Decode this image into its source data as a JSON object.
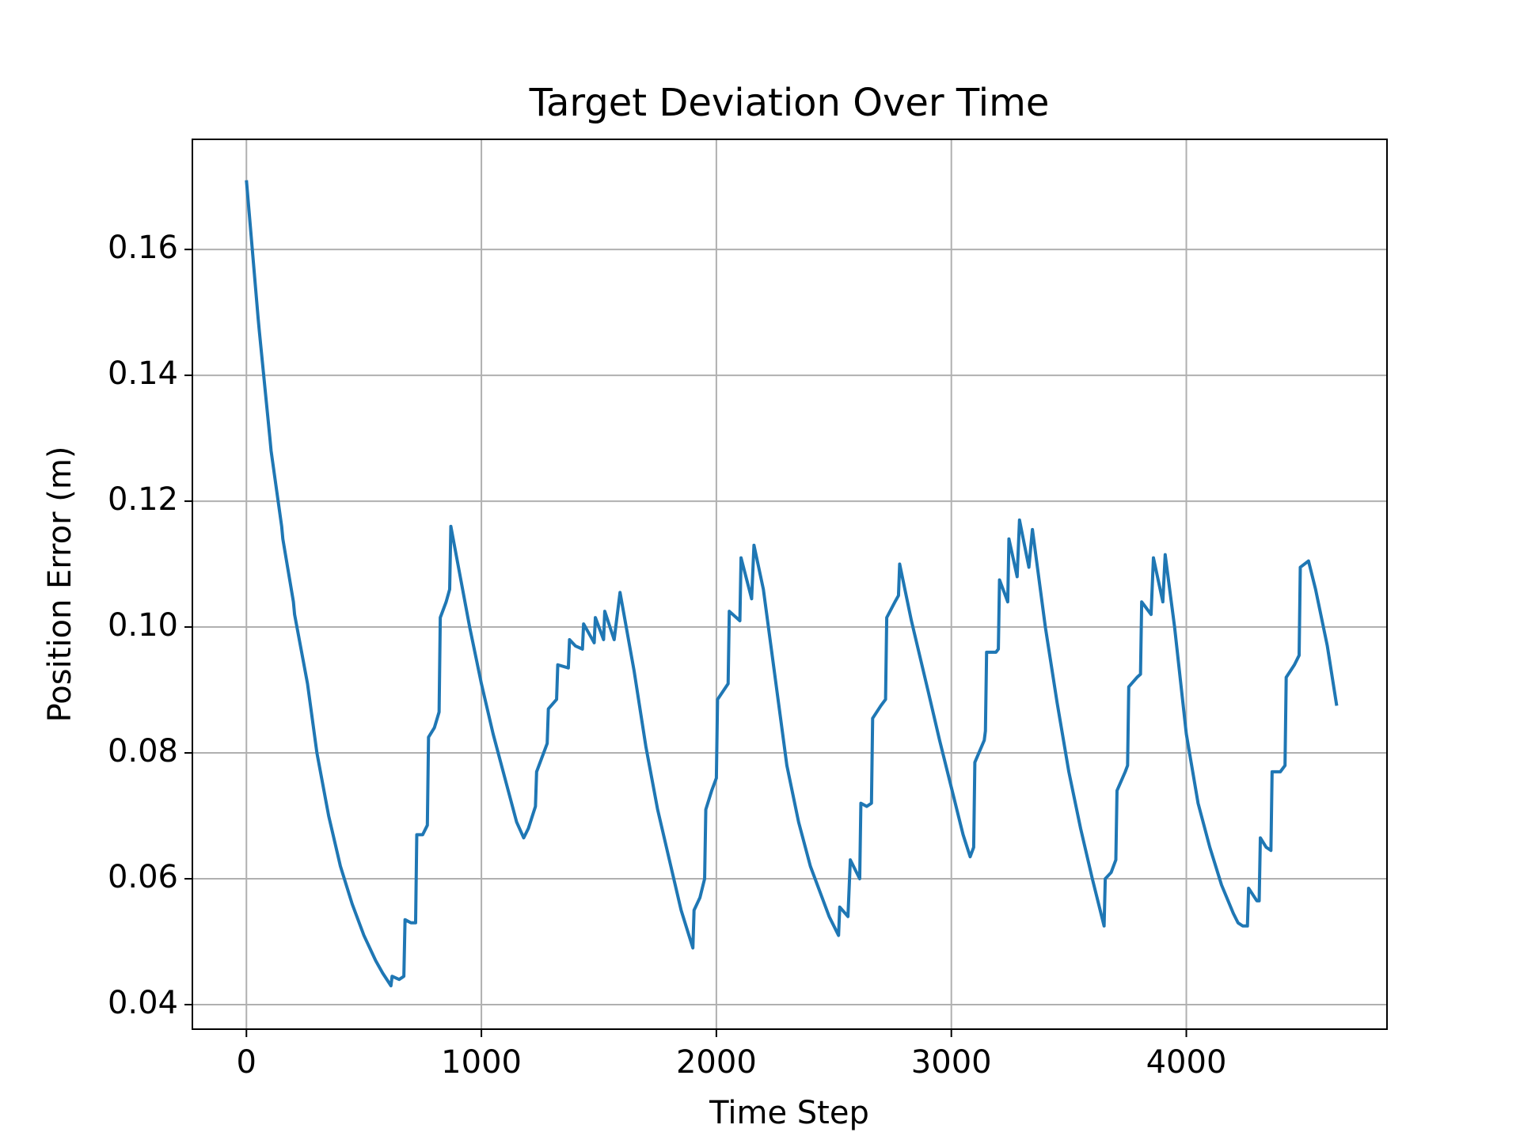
{
  "chart_data": {
    "type": "line",
    "title": "Target Deviation Over Time",
    "xlabel": "Time Step",
    "ylabel": "Position Error (m)",
    "color": "#1f77b4",
    "grid": true,
    "xlim": [
      -230,
      4854
    ],
    "ylim": [
      0.0361,
      0.1775
    ],
    "xticks": [
      0,
      1000,
      2000,
      3000,
      4000
    ],
    "yticks": [
      0.04,
      0.06,
      0.08,
      {
        "value": 0.1,
        "label": "0.10"
      },
      0.12,
      0.14,
      0.16
    ],
    "x": [
      0,
      50,
      55,
      100,
      105,
      150,
      155,
      200,
      205,
      255,
      260,
      300,
      350,
      400,
      450,
      500,
      550,
      580,
      615,
      620,
      650,
      670,
      675,
      700,
      720,
      725,
      750,
      770,
      775,
      800,
      820,
      825,
      850,
      865,
      870,
      900,
      950,
      1000,
      1050,
      1100,
      1150,
      1180,
      1200,
      1230,
      1235,
      1280,
      1285,
      1320,
      1325,
      1370,
      1375,
      1400,
      1430,
      1435,
      1480,
      1485,
      1520,
      1525,
      1565,
      1590,
      1650,
      1700,
      1750,
      1800,
      1850,
      1900,
      1905,
      1930,
      1950,
      1955,
      1980,
      2000,
      2005,
      2050,
      2055,
      2100,
      2105,
      2150,
      2160,
      2200,
      2250,
      2300,
      2350,
      2400,
      2450,
      2480,
      2520,
      2525,
      2560,
      2570,
      2610,
      2615,
      2640,
      2660,
      2665,
      2700,
      2720,
      2725,
      2760,
      2775,
      2780,
      2830,
      2900,
      2950,
      3000,
      3050,
      3080,
      3095,
      3100,
      3140,
      3145,
      3150,
      3190,
      3200,
      3205,
      3240,
      3245,
      3280,
      3290,
      3330,
      3345,
      3400,
      3450,
      3500,
      3550,
      3600,
      3650,
      3655,
      3680,
      3700,
      3705,
      3740,
      3750,
      3755,
      3790,
      3805,
      3810,
      3850,
      3860,
      3900,
      3910,
      3950,
      4000,
      4050,
      4100,
      4150,
      4200,
      4220,
      4240,
      4260,
      4265,
      4300,
      4310,
      4315,
      4340,
      4360,
      4365,
      4400,
      4420,
      4425,
      4460,
      4480,
      4485,
      4520,
      4550,
      4600,
      4640
    ],
    "values": [
      0.171,
      0.149,
      0.147,
      0.13,
      0.128,
      0.116,
      0.114,
      0.104,
      0.102,
      0.092,
      0.091,
      0.08,
      0.07,
      0.062,
      0.056,
      0.051,
      0.047,
      0.045,
      0.043,
      0.0445,
      0.044,
      0.0445,
      0.0535,
      0.053,
      0.053,
      0.067,
      0.067,
      0.0685,
      0.0825,
      0.084,
      0.0865,
      0.1015,
      0.104,
      0.106,
      0.116,
      0.11,
      0.1,
      0.091,
      0.083,
      0.076,
      0.069,
      0.0665,
      0.068,
      0.0715,
      0.077,
      0.0815,
      0.087,
      0.0885,
      0.094,
      0.0935,
      0.098,
      0.097,
      0.0965,
      0.1005,
      0.0975,
      0.1015,
      0.098,
      0.1025,
      0.098,
      0.1055,
      0.093,
      0.081,
      0.071,
      0.063,
      0.055,
      0.049,
      0.055,
      0.057,
      0.06,
      0.071,
      0.074,
      0.076,
      0.0885,
      0.091,
      0.1025,
      0.101,
      0.111,
      0.1045,
      0.113,
      0.106,
      0.092,
      0.078,
      0.069,
      0.062,
      0.057,
      0.054,
      0.051,
      0.0555,
      0.054,
      0.063,
      0.06,
      0.072,
      0.0715,
      0.072,
      0.0855,
      0.0875,
      0.0885,
      0.1015,
      0.104,
      0.105,
      0.11,
      0.101,
      0.09,
      0.082,
      0.0745,
      0.067,
      0.0635,
      0.065,
      0.0785,
      0.082,
      0.0835,
      0.096,
      0.096,
      0.0965,
      0.1075,
      0.104,
      0.114,
      0.108,
      0.117,
      0.1095,
      0.1155,
      0.1,
      0.088,
      0.077,
      0.068,
      0.06,
      0.0525,
      0.06,
      0.061,
      0.063,
      0.074,
      0.077,
      0.078,
      0.0905,
      0.092,
      0.0925,
      0.104,
      0.102,
      0.111,
      0.104,
      0.1115,
      0.1,
      0.083,
      0.072,
      0.065,
      0.059,
      0.0545,
      0.053,
      0.0525,
      0.0525,
      0.0585,
      0.0565,
      0.0565,
      0.0665,
      0.065,
      0.0645,
      0.077,
      0.077,
      0.078,
      0.092,
      0.094,
      0.0955,
      0.1095,
      0.1105,
      0.106,
      0.097,
      0.0875
    ]
  }
}
